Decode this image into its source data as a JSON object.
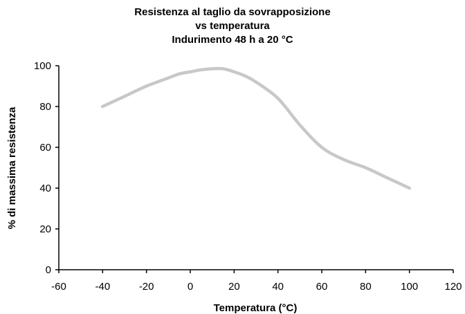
{
  "chart_data": {
    "type": "line",
    "title_lines": [
      "Resistenza al taglio da sovrapposizione",
      "vs temperatura",
      "Indurimento 48 h a 20 °C"
    ],
    "xlabel": "Temperatura (°C)",
    "ylabel": "% di massima resistenza",
    "xlim": [
      -60,
      120
    ],
    "ylim": [
      0,
      100
    ],
    "xticks": [
      -60,
      -40,
      -20,
      0,
      20,
      40,
      60,
      80,
      100,
      120
    ],
    "yticks": [
      0,
      20,
      40,
      60,
      80,
      100
    ],
    "grid": false,
    "legend": "none",
    "line_color": "#c8c8c8",
    "series": [
      {
        "x": [
          -40,
          -30,
          -20,
          -10,
          -5,
          0,
          5,
          10,
          15,
          20,
          25,
          30,
          40,
          50,
          60,
          70,
          80,
          90,
          100
        ],
        "values": [
          80,
          85,
          90,
          94,
          96,
          97,
          98,
          98.5,
          98.5,
          97,
          95,
          92,
          84,
          71,
          60,
          54,
          50,
          45,
          40
        ]
      }
    ]
  }
}
